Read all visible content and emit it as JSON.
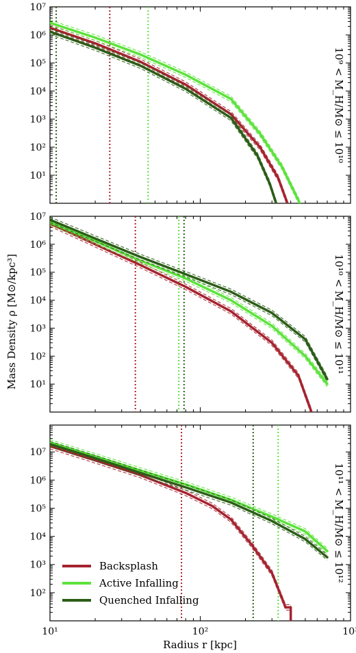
{
  "figure": {
    "xlabel": "Radius r [kpc]",
    "ylabel": "Mass Density ρ [M⊙/kpc³]"
  },
  "colors": {
    "Backsplash": "#a5232f",
    "Active Infalling": "#5ce23c",
    "Quenched Infalling": "#2b5d17"
  },
  "legend": {
    "placement": "lower-left of bottom panel",
    "entries": [
      "Backsplash",
      "Active Infalling",
      "Quenched Infalling"
    ]
  },
  "chart_data": [
    {
      "type": "line",
      "panel_label": "10⁹ < M_H/M⊙ ≤ 10¹⁰",
      "xscale": "log",
      "yscale": "log",
      "xlim": [
        10,
        1000
      ],
      "ylim": [
        1,
        10000000
      ],
      "x_ticks": [
        "10¹",
        "10²",
        "10³"
      ],
      "y_ticks": [
        "10¹",
        "10²",
        "10³",
        "10⁴",
        "10⁵",
        "10⁶",
        "10⁷"
      ],
      "series": [
        {
          "name": "Backsplash",
          "x": [
            10,
            20,
            40,
            80,
            160,
            250,
            330,
            380
          ],
          "y": [
            1800000,
            500000,
            110000,
            17000,
            1500,
            100,
            8,
            1
          ]
        },
        {
          "name": "Active Infalling",
          "x": [
            10,
            20,
            40,
            80,
            160,
            250,
            350,
            460
          ],
          "y": [
            2700000,
            800000,
            200000,
            38000,
            5200,
            300,
            20,
            1
          ]
        },
        {
          "name": "Quenched Infalling",
          "x": [
            10,
            20,
            40,
            80,
            160,
            240,
            290,
            320
          ],
          "y": [
            1300000,
            350000,
            80000,
            12000,
            1100,
            50,
            5,
            1
          ]
        }
      ],
      "radius_markers": [
        {
          "name": "Backsplash",
          "x": 25
        },
        {
          "name": "Active Infalling",
          "x": 45
        },
        {
          "name": "Quenched Infalling",
          "x": 11
        }
      ]
    },
    {
      "type": "line",
      "panel_label": "10¹⁰ < M_H/M⊙ ≤ 10¹¹",
      "xscale": "log",
      "yscale": "log",
      "xlim": [
        10,
        1000
      ],
      "ylim": [
        1,
        10000000
      ],
      "x_ticks": [
        "10¹",
        "10²",
        "10³"
      ],
      "y_ticks": [
        "10¹",
        "10²",
        "10³",
        "10⁴",
        "10⁵",
        "10⁶",
        "10⁷"
      ],
      "series": [
        {
          "name": "Backsplash",
          "x": [
            10,
            20,
            40,
            80,
            160,
            300,
            450,
            550
          ],
          "y": [
            5500000,
            1000000,
            180000,
            30000,
            4000,
            300,
            20,
            1
          ]
        },
        {
          "name": "Active Infalling",
          "x": [
            10,
            20,
            40,
            80,
            160,
            300,
            500,
            700
          ],
          "y": [
            6000000,
            1300000,
            260000,
            60000,
            10000,
            1200,
            100,
            10
          ]
        },
        {
          "name": "Quenched Infalling",
          "x": [
            10,
            20,
            40,
            80,
            160,
            300,
            500,
            700
          ],
          "y": [
            7500000,
            1600000,
            350000,
            85000,
            20000,
            3500,
            400,
            15
          ]
        }
      ],
      "radius_markers": [
        {
          "name": "Backsplash",
          "x": 37
        },
        {
          "name": "Active Infalling",
          "x": 72
        },
        {
          "name": "Quenched Infalling",
          "x": 78
        }
      ]
    },
    {
      "type": "line",
      "panel_label": "10¹¹ < M_H/M⊙ ≤ 10¹²",
      "xscale": "log",
      "yscale": "log",
      "xlim": [
        10,
        1000
      ],
      "ylim": [
        10,
        90000000
      ],
      "x_ticks": [
        "10¹",
        "10²",
        "10³"
      ],
      "y_ticks": [
        "10²",
        "10³",
        "10⁴",
        "10⁵",
        "10⁶",
        "10⁷"
      ],
      "series": [
        {
          "name": "Backsplash",
          "x": [
            10,
            20,
            40,
            80,
            120,
            160,
            220,
            300,
            370,
            400,
            400
          ],
          "y": [
            16000000,
            5000000,
            1500000,
            350000,
            120000,
            40000,
            5000,
            500,
            30,
            30,
            10
          ]
        },
        {
          "name": "Active Infalling",
          "x": [
            10,
            20,
            40,
            80,
            160,
            300,
            500,
            700
          ],
          "y": [
            22000000,
            7000000,
            2200000,
            700000,
            200000,
            50000,
            15000,
            3000
          ]
        },
        {
          "name": "Quenched Infalling",
          "x": [
            10,
            20,
            40,
            80,
            160,
            300,
            500,
            700
          ],
          "y": [
            19000000,
            6000000,
            1800000,
            550000,
            160000,
            35000,
            8000,
            1800
          ]
        }
      ],
      "radius_markers": [
        {
          "name": "Backsplash",
          "x": 75
        },
        {
          "name": "Active Infalling",
          "x": 330
        },
        {
          "name": "Quenched Infalling",
          "x": 225
        }
      ]
    }
  ]
}
